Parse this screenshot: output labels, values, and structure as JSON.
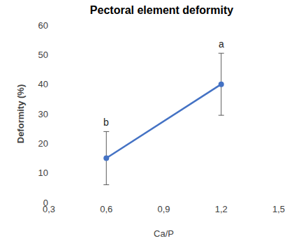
{
  "chart_data": {
    "type": "line",
    "title": "Pectoral element deformity",
    "x_label": "Ca/P",
    "y_label": "Deformity (%)",
    "x": [
      0.6,
      1.2
    ],
    "values": [
      15,
      40
    ],
    "errors": [
      9,
      10.5
    ],
    "annotations": [
      "b",
      "a"
    ],
    "color": "#4472c4",
    "marker": "circle",
    "line_style": "solid",
    "xlim": [
      0.3,
      1.5
    ],
    "xticks": [
      {
        "value": 0.3,
        "label": "0,3"
      },
      {
        "value": 0.6,
        "label": "0,6"
      },
      {
        "value": 0.9,
        "label": "0,9"
      },
      {
        "value": 1.2,
        "label": "1,2"
      },
      {
        "value": 1.5,
        "label": "1,5"
      }
    ],
    "ylim": [
      0,
      60
    ],
    "yticks": [
      0,
      10,
      20,
      30,
      40,
      50,
      60
    ],
    "grid": false
  }
}
